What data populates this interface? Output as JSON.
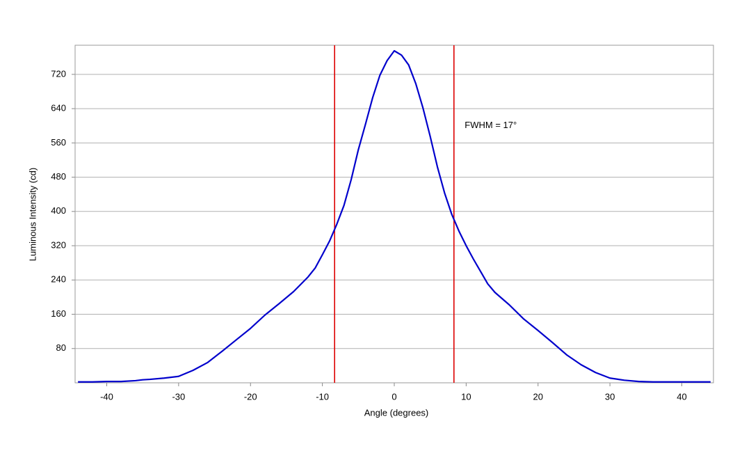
{
  "chart_data": {
    "type": "line",
    "x_label": "Angle (degrees)",
    "y_label": "Luminous Intensity (cd)",
    "x": [
      -44,
      -42,
      -40,
      -38,
      -36,
      -35,
      -34,
      -32,
      -30,
      -28,
      -26,
      -24,
      -22,
      -20,
      -18,
      -16,
      -14,
      -12,
      -11,
      -10,
      -9,
      -8,
      -7,
      -6,
      -5,
      -4,
      -3,
      -2,
      -1,
      0,
      1,
      2,
      3,
      4,
      5,
      6,
      7,
      8,
      9,
      10,
      11,
      12,
      13,
      14,
      16,
      18,
      20,
      22,
      24,
      26,
      28,
      30,
      32,
      34,
      36,
      38,
      40,
      42,
      44
    ],
    "series": [
      {
        "name": "Luminous Intensity",
        "color": "#0000cc",
        "values": [
          2,
          2,
          3,
          3,
          5,
          7,
          8,
          11,
          15,
          29,
          47,
          73,
          100,
          127,
          158,
          185,
          213,
          247,
          268,
          299,
          331,
          370,
          414,
          474,
          544,
          604,
          666,
          718,
          752,
          775,
          765,
          742,
          698,
          641,
          575,
          504,
          443,
          393,
          354,
          320,
          289,
          260,
          231,
          211,
          182,
          149,
          122,
          94,
          65,
          42,
          24,
          11,
          6,
          3,
          2,
          2,
          2,
          2,
          2
        ]
      }
    ],
    "xlim": [
      -44.4,
      44.4
    ],
    "ylim": [
      0,
      788
    ],
    "xticks": [
      -40,
      -30,
      -20,
      -10,
      0,
      10,
      20,
      30,
      40
    ],
    "yticks": [
      80,
      160,
      240,
      320,
      400,
      480,
      560,
      640,
      720
    ],
    "grid": true,
    "vlines": [
      -8.3,
      8.3
    ],
    "vline_color": "#dd0000",
    "annotations": [
      {
        "text": "FWHM = 17°",
        "x": 9.8,
        "y": 600
      }
    ]
  }
}
